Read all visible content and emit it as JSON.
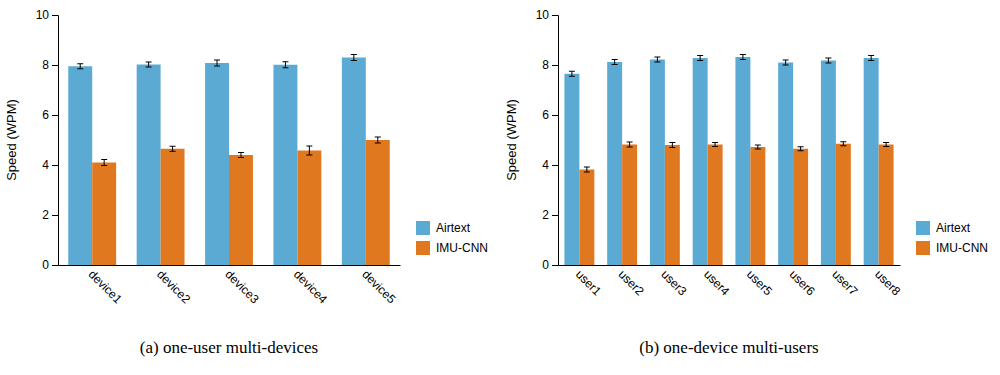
{
  "chart_data": [
    {
      "type": "bar",
      "categories": [
        "device1",
        "device2",
        "device3",
        "device4",
        "device5"
      ],
      "series": [
        {
          "name": "Airtext",
          "color": "#5BAAD4",
          "values": [
            7.95,
            8.02,
            8.08,
            8.01,
            8.3
          ],
          "errors": [
            0.1,
            0.1,
            0.12,
            0.12,
            0.12
          ]
        },
        {
          "name": "IMU-CNN",
          "color": "#E07820",
          "values": [
            4.1,
            4.65,
            4.4,
            4.58,
            5.0
          ],
          "errors": [
            0.12,
            0.1,
            0.1,
            0.18,
            0.12
          ]
        }
      ],
      "ylabel": "Speed (WPM)",
      "caption": "(a)  one-user multi-devices",
      "ylim": [
        0,
        10
      ],
      "yticks": [
        0,
        2,
        4,
        6,
        8,
        10
      ],
      "grid": false,
      "legend": "lower right"
    },
    {
      "type": "bar",
      "categories": [
        "user1",
        "user2",
        "user3",
        "user4",
        "user5",
        "user6",
        "user7",
        "user8"
      ],
      "series": [
        {
          "name": "Airtext",
          "color": "#5BAAD4",
          "values": [
            7.65,
            8.12,
            8.22,
            8.28,
            8.32,
            8.1,
            8.18,
            8.28
          ],
          "errors": [
            0.1,
            0.1,
            0.1,
            0.1,
            0.1,
            0.1,
            0.1,
            0.1
          ]
        },
        {
          "name": "IMU-CNN",
          "color": "#E07820",
          "values": [
            3.82,
            4.82,
            4.8,
            4.82,
            4.72,
            4.65,
            4.85,
            4.82
          ],
          "errors": [
            0.1,
            0.1,
            0.1,
            0.08,
            0.08,
            0.08,
            0.08,
            0.08
          ]
        }
      ],
      "ylabel": "Speed (WPM)",
      "caption": "(b)  one-device multi-users",
      "ylim": [
        0,
        10
      ],
      "yticks": [
        0,
        2,
        4,
        6,
        8,
        10
      ],
      "grid": false,
      "legend": "lower right"
    }
  ]
}
